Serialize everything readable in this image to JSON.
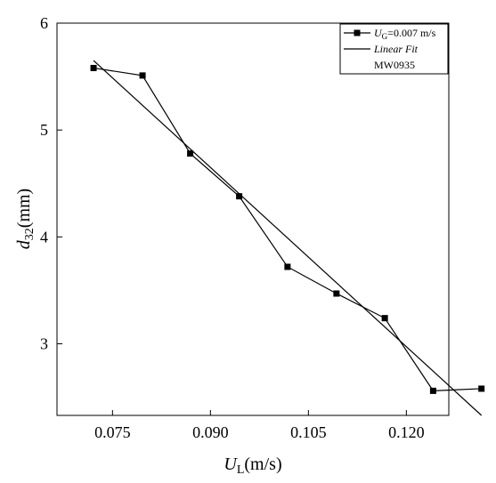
{
  "chart_data": {
    "type": "line",
    "xlabel": {
      "main": "U",
      "sub": "L",
      "rest": "(m/s)"
    },
    "ylabel": {
      "main": "d",
      "sub": "32",
      "rest": "(mm)"
    },
    "xlim": [
      0.0665,
      0.1265
    ],
    "ylim": [
      2.33,
      6.0
    ],
    "xticks": [
      0.075,
      0.09,
      0.105,
      0.12
    ],
    "xtick_labels": [
      "0.075",
      "0.090",
      "0.105",
      "0.120"
    ],
    "yticks": [
      3,
      4,
      5,
      6
    ],
    "ytick_labels": [
      "3",
      "4",
      "5",
      "6"
    ],
    "series": [
      {
        "name": "U_G=0.007 m/s",
        "name_parts": {
          "main": "U",
          "sub": "G",
          "rest": "=0.007 m/s"
        },
        "marker": "square",
        "x": [
          0.0721,
          0.0796,
          0.0869,
          0.0944,
          0.1018,
          0.1093,
          0.1167,
          0.1241,
          0.1315
        ],
        "y": [
          5.58,
          5.51,
          4.78,
          4.38,
          3.72,
          3.47,
          3.24,
          2.56,
          2.58
        ]
      },
      {
        "name": "Linear Fit",
        "marker": "none",
        "x": [
          0.0721,
          0.1315
        ],
        "y": [
          5.65,
          2.33
        ]
      }
    ],
    "legend": {
      "position": "top-right",
      "entries": [
        "U_G=0.007 m/s",
        "Linear Fit"
      ],
      "note": "MW0935"
    },
    "grid": false
  }
}
